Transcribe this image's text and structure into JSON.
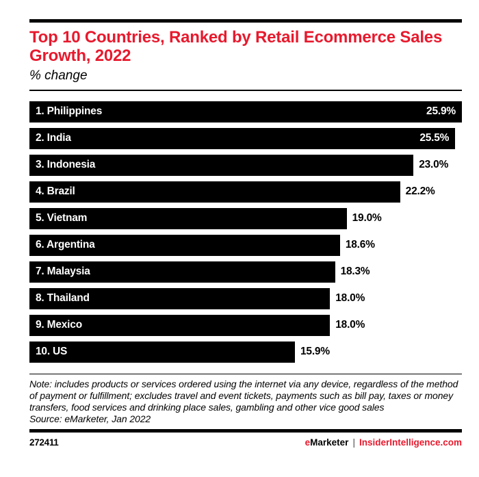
{
  "header": {
    "title": "Top 10 Countries, Ranked by Retail Ecommerce Sales Growth, 2022",
    "subtitle": "% change"
  },
  "chart_data": {
    "type": "bar",
    "orientation": "horizontal",
    "title": "Top 10 Countries, Ranked by Retail Ecommerce Sales Growth, 2022",
    "unit_label": "% change",
    "categories": [
      "1. Philippines",
      "2. India",
      "3. Indonesia",
      "4. Brazil",
      "5. Vietnam",
      "6. Argentina",
      "7. Malaysia",
      "8. Thailand",
      "9. Mexico",
      "10. US"
    ],
    "values": [
      25.9,
      25.5,
      23.0,
      22.2,
      19.0,
      18.6,
      18.3,
      18.0,
      18.0,
      15.9
    ],
    "value_labels": [
      "25.9%",
      "25.5%",
      "23.0%",
      "22.2%",
      "19.0%",
      "18.6%",
      "18.3%",
      "18.0%",
      "18.0%",
      "15.9%"
    ],
    "max_value": 25.9,
    "xlim": [
      0,
      25.9
    ],
    "grid": false,
    "legend": false,
    "bar_color": "#000000",
    "inside_label_color": "#ffffff",
    "outside_label_color": "#000000"
  },
  "note": {
    "text": "Note: includes products or services ordered using the internet via any device, regardless of the method of payment or fulfillment; excludes travel and event tickets, payments such as bill pay, taxes or money transfers, food services and drinking place sales, gambling and other vice good sales",
    "source": "Source: eMarketer, Jan 2022"
  },
  "footer": {
    "chart_id": "272411",
    "brand": {
      "e": "e",
      "marketer": "Marketer",
      "pipe": "|",
      "site": "InsiderIntelligence.com"
    }
  },
  "colors": {
    "accent_red": "#e8192d",
    "bar_black": "#000000",
    "background": "#ffffff"
  }
}
